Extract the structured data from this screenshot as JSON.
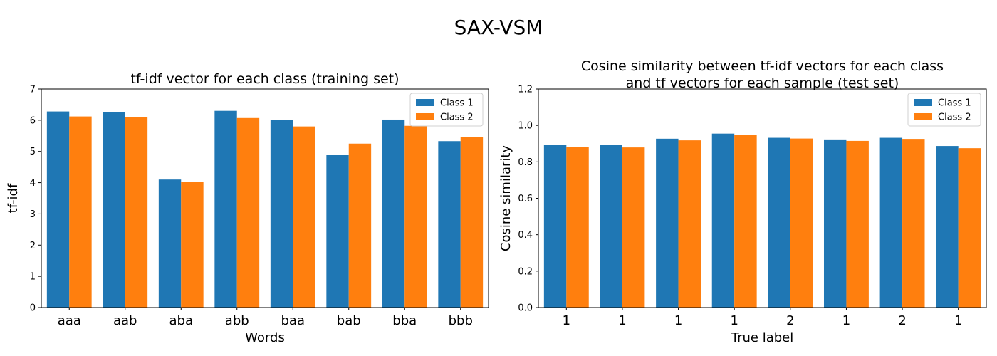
{
  "figure_title": "SAX-VSM",
  "colors": {
    "class1": "#1f77b4",
    "class2": "#ff7f0e"
  },
  "chart_data": [
    {
      "type": "bar",
      "title": "tf-idf vector for each class (training set)",
      "xlabel": "Words",
      "ylabel": "tf-idf",
      "categories": [
        "aaa",
        "aab",
        "aba",
        "abb",
        "baa",
        "bab",
        "bba",
        "bbb"
      ],
      "ylim": [
        0,
        7
      ],
      "yticks": [
        "0",
        "1",
        "2",
        "3",
        "4",
        "5",
        "6",
        "7"
      ],
      "legend_position": "top-right",
      "series": [
        {
          "name": "Class 1",
          "values": [
            6.28,
            6.25,
            4.1,
            6.3,
            6.0,
            4.9,
            6.02,
            5.33
          ]
        },
        {
          "name": "Class 2",
          "values": [
            6.12,
            6.1,
            4.03,
            6.07,
            5.8,
            5.25,
            5.82,
            5.45
          ]
        }
      ]
    },
    {
      "type": "bar",
      "title": "Cosine similarity between tf-idf vectors for each class\nand tf vectors for each sample (test set)",
      "xlabel": "True label",
      "ylabel": "Cosine similarity",
      "categories": [
        "1",
        "1",
        "1",
        "1",
        "2",
        "1",
        "2",
        "1"
      ],
      "ylim": [
        0,
        1.2
      ],
      "yticks": [
        "0.0",
        "0.2",
        "0.4",
        "0.6",
        "0.8",
        "1.0",
        "1.2"
      ],
      "legend_position": "top-right",
      "series": [
        {
          "name": "Class 1",
          "values": [
            0.892,
            0.892,
            0.927,
            0.955,
            0.932,
            0.923,
            0.932,
            0.887
          ]
        },
        {
          "name": "Class 2",
          "values": [
            0.882,
            0.879,
            0.918,
            0.946,
            0.928,
            0.915,
            0.926,
            0.875
          ]
        }
      ]
    }
  ]
}
